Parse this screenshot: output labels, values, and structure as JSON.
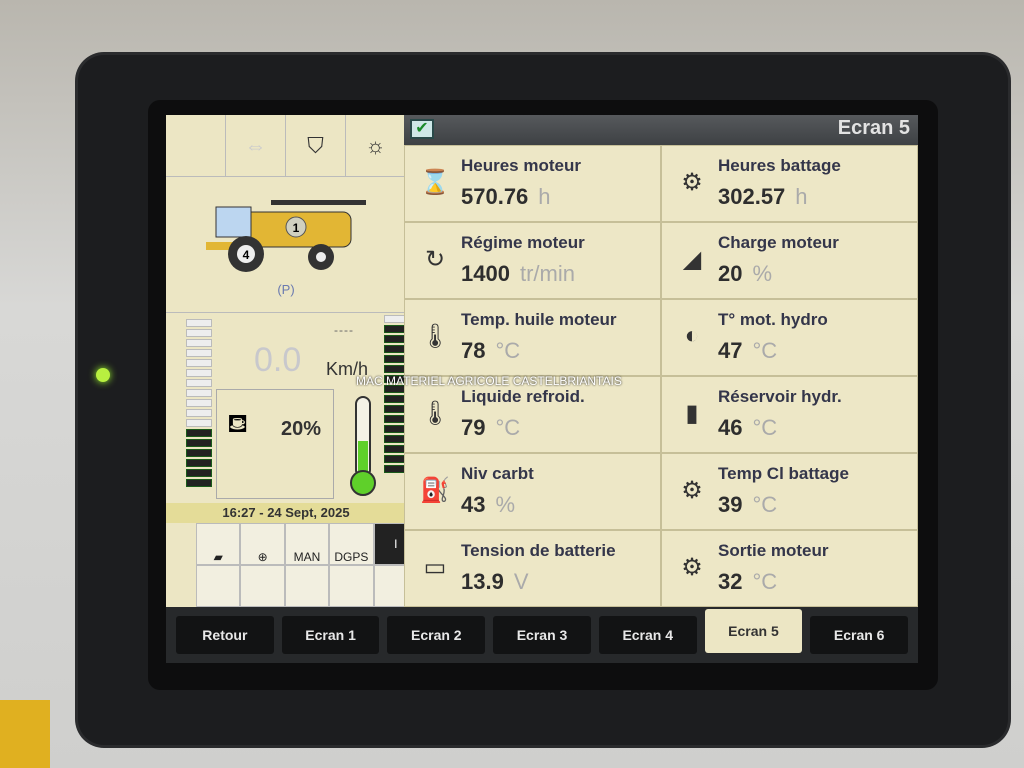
{
  "left_panel": {
    "speed": {
      "value": "0.0",
      "unit": "Km/h",
      "dashes": "----"
    },
    "engine_load": "20%",
    "gear": "4",
    "rotor": "1",
    "parking": "(P)",
    "datetime": "16:27 - 24 Sept, 2025",
    "bottom_icons": [
      {
        "label": ""
      },
      {
        "label": ""
      },
      {
        "label": "MAN"
      },
      {
        "label": "DGPS"
      },
      {
        "label": "I"
      }
    ],
    "thermometer_level": 0.45,
    "left_bar_level": 0.4,
    "right_bar_level": 0.95
  },
  "header": {
    "title": "Ecran 5"
  },
  "cells": [
    {
      "label": "Heures moteur",
      "value": "570.76",
      "unit": "h",
      "icon": "engine-hourglass-icon"
    },
    {
      "label": "Heures battage",
      "value": "302.57",
      "unit": "h",
      "icon": "rotor-hourglass-icon"
    },
    {
      "label": "Régime moteur",
      "value": "1400",
      "unit": "tr/min",
      "icon": "engine-rpm-icon"
    },
    {
      "label": "Charge moteur",
      "value": "20",
      "unit": "%",
      "icon": "engine-load-icon"
    },
    {
      "label": "Temp. huile moteur",
      "value": "78",
      "unit": "°C",
      "icon": "oil-temp-icon"
    },
    {
      "label": "T° mot. hydro",
      "value": "47",
      "unit": "°C",
      "icon": "hydro-motor-temp-icon"
    },
    {
      "label": "Liquide refroid.",
      "value": "79",
      "unit": "°C",
      "icon": "coolant-temp-icon"
    },
    {
      "label": "Réservoir hydr.",
      "value": "46",
      "unit": "°C",
      "icon": "hydraulic-tank-icon"
    },
    {
      "label": "Niv carbt",
      "value": "43",
      "unit": "%",
      "icon": "fuel-pump-icon"
    },
    {
      "label": "Temp Cl battage",
      "value": "39",
      "unit": "°C",
      "icon": "threshing-gearbox-icon"
    },
    {
      "label": "Tension de batterie",
      "value": "13.9",
      "unit": "V",
      "icon": "battery-icon"
    },
    {
      "label": "Sortie moteur",
      "value": "32",
      "unit": "°C",
      "icon": "engine-output-temp-icon"
    }
  ],
  "tabs": [
    "Retour",
    "Ecran 1",
    "Ecran 2",
    "Ecran 3",
    "Ecran 4",
    "Ecran 5",
    "Ecran 6"
  ],
  "active_tab": "Ecran 5",
  "watermark": "MAC MATERIEL AGRICOLE CASTELBRIANTAIS"
}
